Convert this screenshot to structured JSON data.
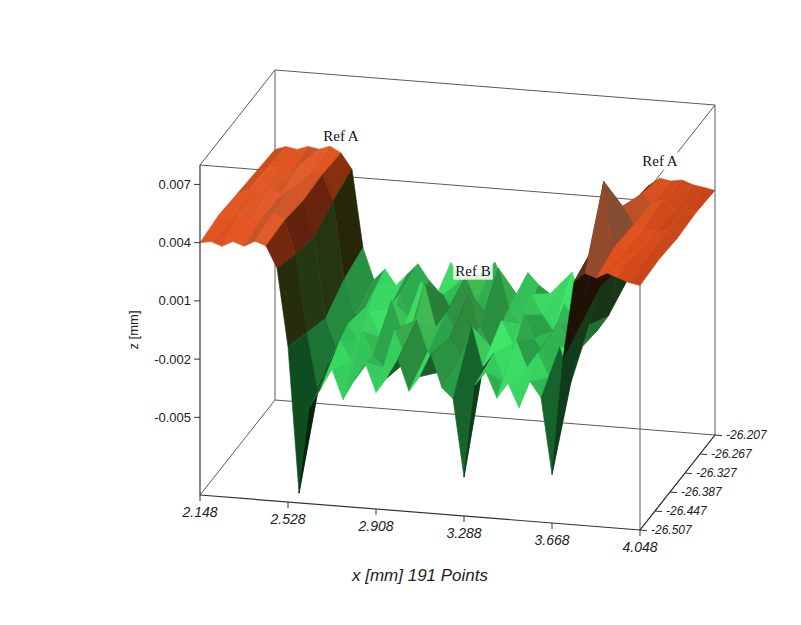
{
  "chart_data": {
    "type": "surface",
    "x_label": "x [mm] 191 Points",
    "z_label": "z [mm]",
    "xlim": [
      2.148,
      4.048
    ],
    "ylim": [
      -26.507,
      -26.207
    ],
    "zlim": [
      -0.009,
      0.008
    ],
    "xticks": [
      2.148,
      2.528,
      2.908,
      3.288,
      3.668,
      4.048
    ],
    "yticks": [
      -26.507,
      -26.447,
      -26.387,
      -26.327,
      -26.267,
      -26.207
    ],
    "zticks": [
      -0.005,
      -0.002,
      0.001,
      0.004,
      0.007
    ],
    "x": [
      2.148,
      2.1955,
      2.243,
      2.2905,
      2.338,
      2.3855,
      2.433,
      2.4805,
      2.528,
      2.5755,
      2.623,
      2.6705,
      2.718,
      2.7655,
      2.813,
      2.8605,
      2.908,
      2.9555,
      3.003,
      3.0505,
      3.098,
      3.1455,
      3.193,
      3.2405,
      3.288,
      3.3355,
      3.383,
      3.4305,
      3.478,
      3.5255,
      3.573,
      3.6205,
      3.668,
      3.7155,
      3.763,
      3.8105,
      3.858,
      3.9055,
      3.953,
      4.0005,
      4.048
    ],
    "y": [
      -26.507,
      -26.432,
      -26.357,
      -26.282,
      -26.207
    ],
    "z": [
      [
        0.004,
        0.0041,
        0.0039,
        0.0042,
        0.004,
        0.0043,
        0.0041,
        0.003,
        -0.001,
        -0.0085,
        -0.004,
        -0.003,
        -0.002,
        -0.0035,
        -0.0025,
        -0.0015,
        -0.003,
        -0.0022,
        -0.0012,
        -0.0028,
        -0.002,
        -0.0008,
        -0.0025,
        -0.003,
        -0.007,
        -0.0022,
        -0.0015,
        -0.0028,
        -0.002,
        -0.0032,
        -0.0018,
        -0.0026,
        -0.0065,
        -0.0005,
        0.0035,
        0.004,
        0.0038,
        0.0041,
        0.0039,
        0.0037,
        0.0036
      ],
      [
        0.0042,
        0.004,
        0.0044,
        0.0041,
        0.0043,
        0.0045,
        0.0042,
        0.0025,
        -0.0015,
        -0.0045,
        -0.003,
        -0.0018,
        -0.0028,
        -0.0012,
        -0.0024,
        -0.003,
        -0.001,
        -0.0026,
        -0.0004,
        -0.002,
        -0.003,
        -0.0012,
        -0.0022,
        -0.0005,
        -0.0026,
        -0.0018,
        -0.0032,
        -0.001,
        -0.0024,
        -0.0016,
        -0.0028,
        -0.0012,
        -0.003,
        0.0002,
        0.004,
        0.0075,
        0.0042,
        0.0039,
        0.004,
        0.0038,
        0.0037
      ],
      [
        0.0041,
        0.0043,
        0.004,
        0.0044,
        0.0042,
        0.0046,
        0.004,
        0.0022,
        -0.002,
        -0.0035,
        -0.0022,
        -0.003,
        -0.0015,
        -0.0027,
        -0.0008,
        -0.0024,
        -0.0018,
        0.0002,
        -0.002,
        -0.0012,
        -0.0025,
        -0.0002,
        -0.0018,
        -0.0028,
        -0.0014,
        -0.0025,
        -0.001,
        -0.0022,
        -0.003,
        -0.0014,
        -0.002,
        -0.0026,
        -0.0012,
        0.0008,
        0.0045,
        0.005,
        0.0041,
        0.004,
        0.0038,
        0.0039,
        0.0036
      ],
      [
        0.004,
        0.0042,
        0.0043,
        0.004,
        0.0045,
        0.0042,
        0.0041,
        0.0028,
        -0.0012,
        -0.003,
        -0.0025,
        -0.0014,
        -0.0026,
        -0.0018,
        -0.003,
        -0.001,
        -0.0022,
        -0.0016,
        -0.0026,
        -0.0006,
        -0.0018,
        -0.0024,
        0.0,
        -0.002,
        -0.0028,
        -0.0012,
        -0.0022,
        -0.003,
        -0.0016,
        -0.0024,
        -0.001,
        -0.0028,
        -0.002,
        0.0005,
        0.0038,
        0.0044,
        0.004,
        0.0042,
        0.0037,
        0.0038,
        0.0037
      ],
      [
        0.0039,
        0.0041,
        0.004,
        0.0042,
        0.0041,
        0.0043,
        0.004,
        0.0032,
        -0.0008,
        -0.0024,
        -0.0018,
        -0.0026,
        -0.002,
        -0.0014,
        -0.0022,
        -0.0028,
        -0.0012,
        -0.002,
        -0.0024,
        -0.0016,
        -0.001,
        -0.0022,
        -0.0026,
        -0.0014,
        -0.002,
        -0.0024,
        -0.0018,
        -0.0012,
        -0.0026,
        -0.002,
        -0.0016,
        -0.0024,
        -0.0014,
        0.001,
        0.0036,
        0.004,
        0.0039,
        0.004,
        0.0038,
        0.0037,
        0.0036
      ]
    ],
    "annotations": [
      {
        "text": "Ref A",
        "x": 2.433
      },
      {
        "text": "Ref B",
        "x": 3.003
      },
      {
        "text": "Ref A",
        "x": 3.8105
      }
    ]
  }
}
